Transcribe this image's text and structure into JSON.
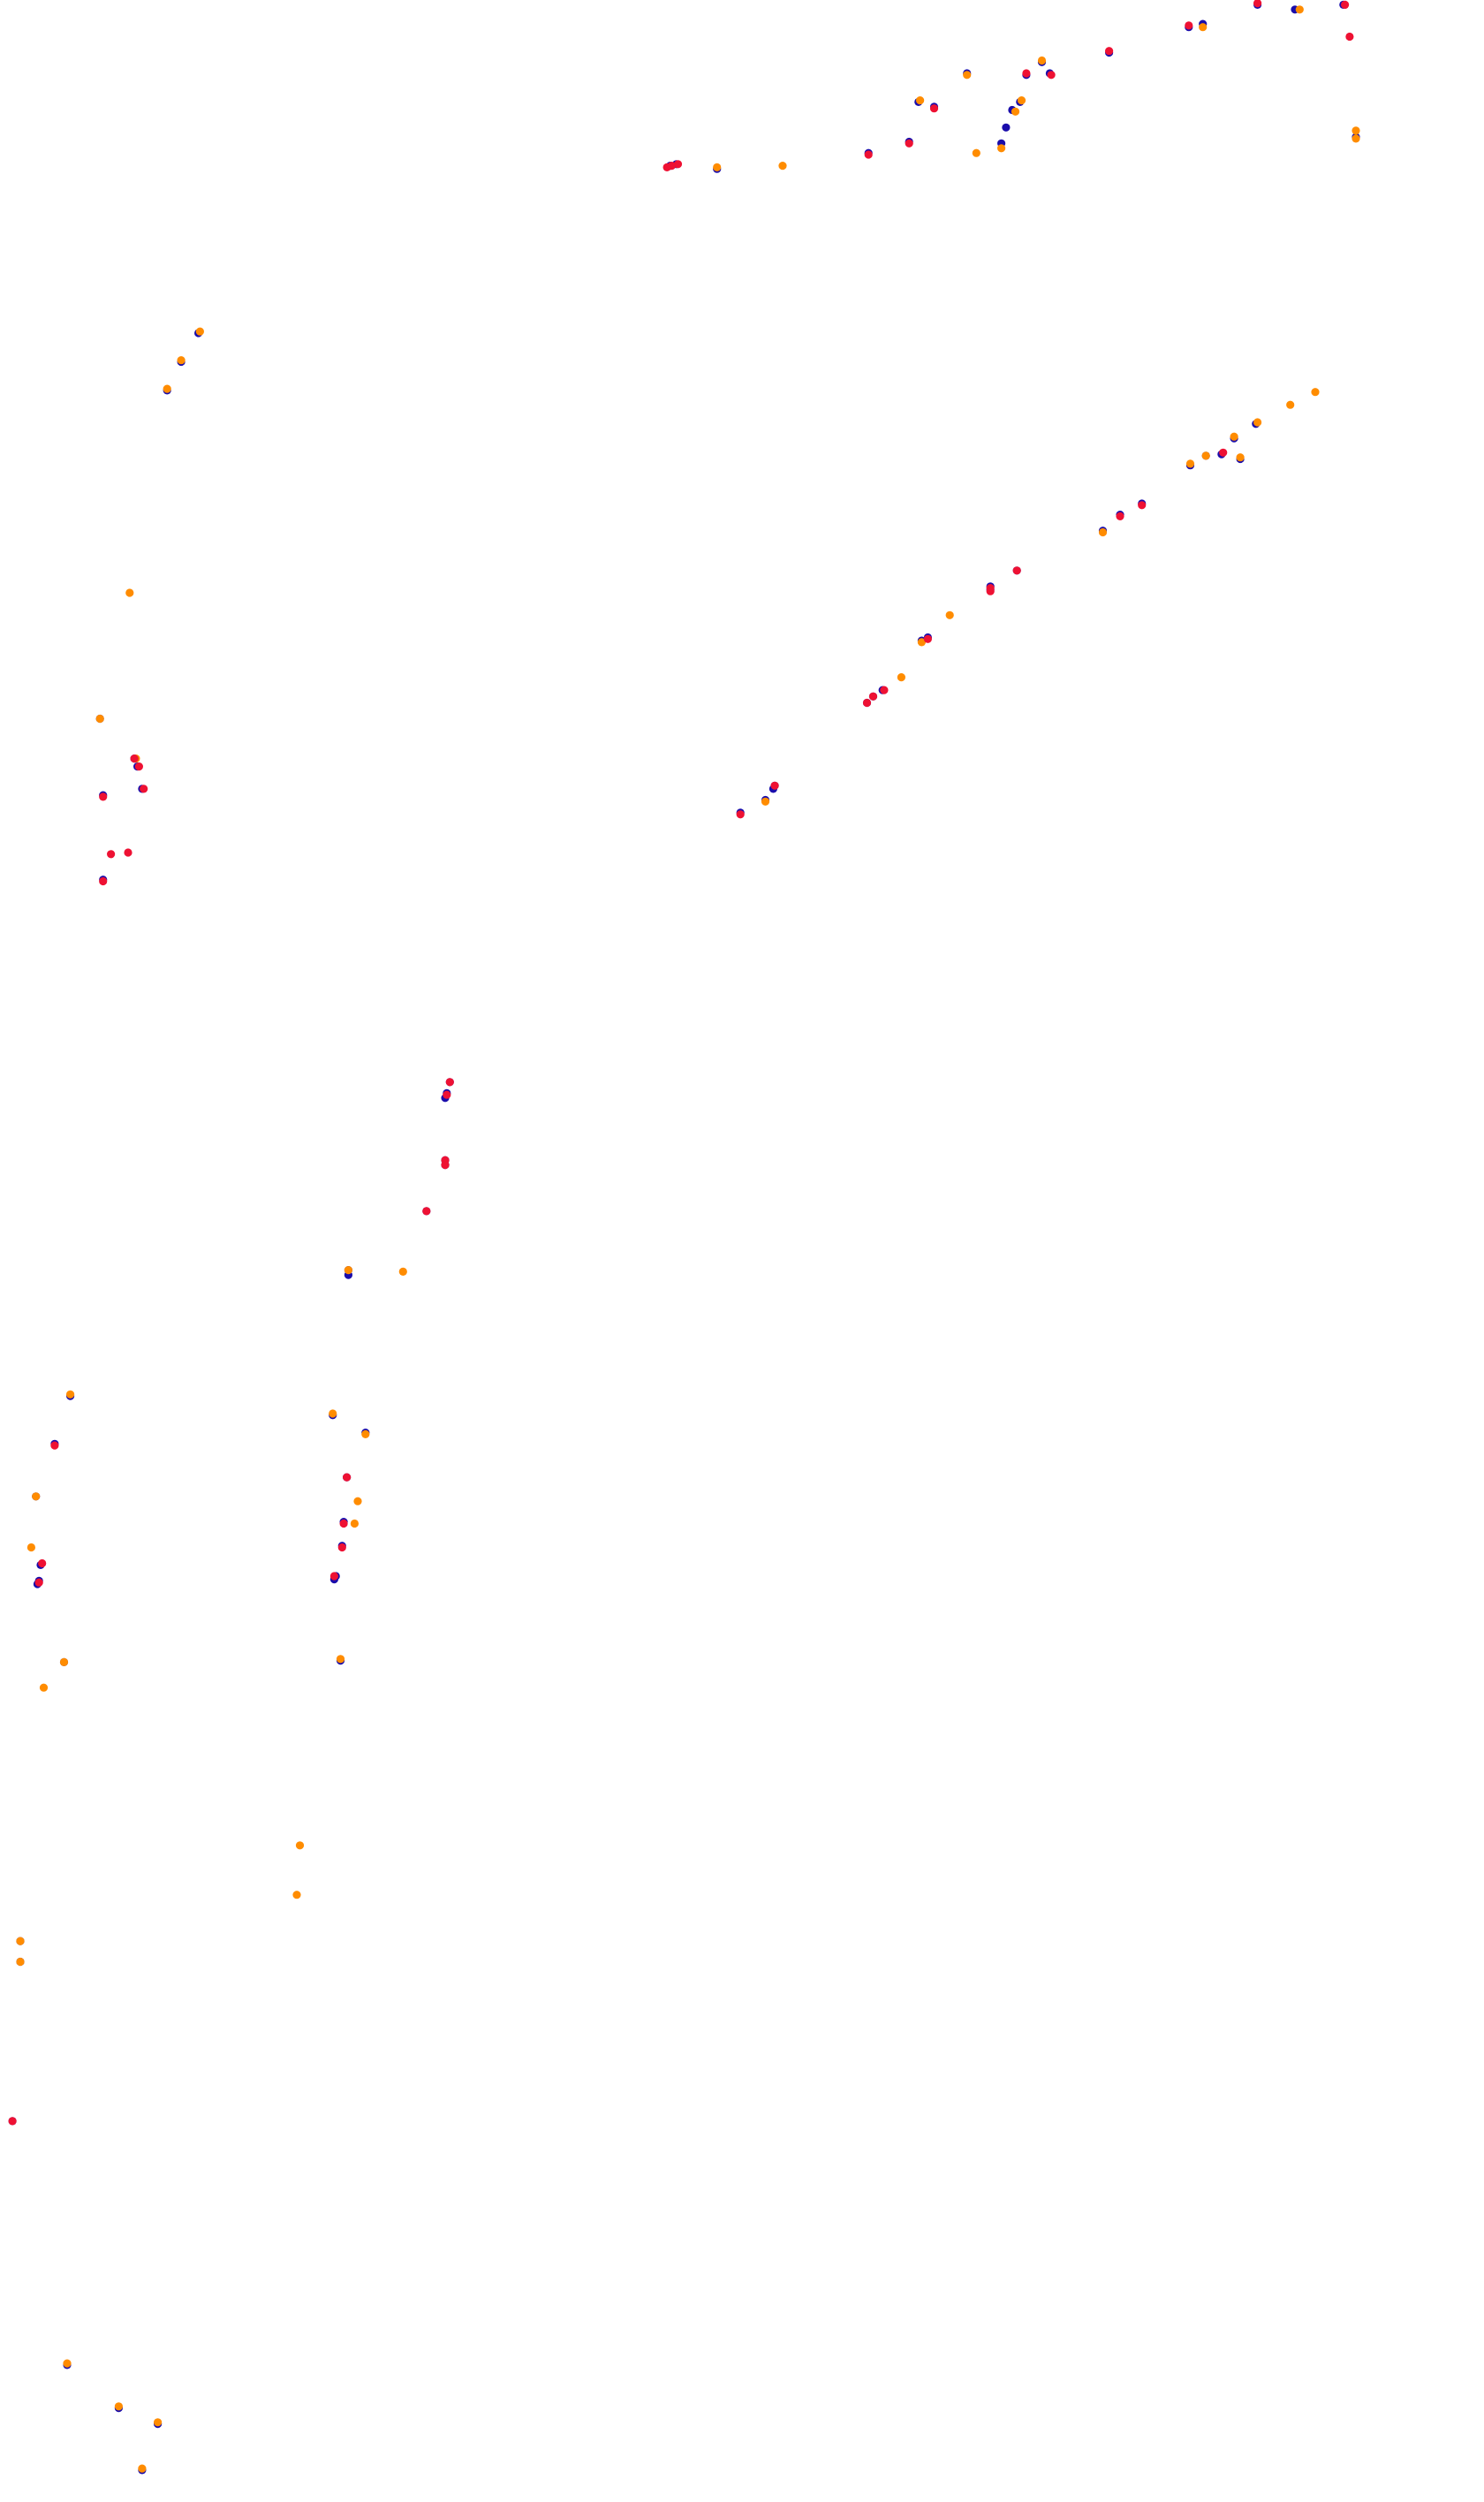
{
  "chart_data": {
    "type": "scatter",
    "title": "",
    "xlabel": "",
    "ylabel": "",
    "axes_visible": false,
    "grid": false,
    "legend": "none",
    "xlim": [
      0,
      950
    ],
    "ylim": [
      1570,
      0
    ],
    "series": [
      {
        "color": "#1a0dab",
        "points": [
          [
            805,
            3
          ],
          [
            829,
            6
          ],
          [
            860,
            3
          ],
          [
            770,
            15
          ],
          [
            761,
            17
          ],
          [
            710,
            33
          ],
          [
            672,
            46
          ],
          [
            657,
            47
          ],
          [
            619,
            46
          ],
          [
            667,
            39
          ],
          [
            653,
            64
          ],
          [
            648,
            69
          ],
          [
            644,
            80
          ],
          [
            641,
            90
          ],
          [
            598,
            67
          ],
          [
            588,
            64
          ],
          [
            582,
            89
          ],
          [
            556,
            96
          ],
          [
            433,
            103
          ],
          [
            429,
            104
          ],
          [
            459,
            106
          ],
          [
            868,
            86
          ],
          [
            127,
            209
          ],
          [
            116,
            227
          ],
          [
            107,
            245
          ],
          [
            804,
            266
          ],
          [
            790,
            275
          ],
          [
            794,
            288
          ],
          [
            782,
            285
          ],
          [
            772,
            286
          ],
          [
            762,
            292
          ],
          [
            731,
            316
          ],
          [
            717,
            323
          ],
          [
            706,
            333
          ],
          [
            651,
            358
          ],
          [
            634,
            368
          ],
          [
            634,
            370
          ],
          [
            594,
            400
          ],
          [
            590,
            402
          ],
          [
            565,
            433
          ],
          [
            559,
            437
          ],
          [
            555,
            441
          ],
          [
            496,
            493
          ],
          [
            495,
            495
          ],
          [
            490,
            502
          ],
          [
            474,
            510
          ],
          [
            64,
            451
          ],
          [
            86,
            476
          ],
          [
            88,
            481
          ],
          [
            91,
            495
          ],
          [
            66,
            499
          ],
          [
            66,
            552
          ],
          [
            288,
            679
          ],
          [
            286,
            686
          ],
          [
            285,
            689
          ],
          [
            285,
            728
          ],
          [
            285,
            731
          ],
          [
            273,
            760
          ],
          [
            223,
            797
          ],
          [
            223,
            800
          ],
          [
            45,
            876
          ],
          [
            35,
            906
          ],
          [
            23,
            939
          ],
          [
            26,
            982
          ],
          [
            25,
            992
          ],
          [
            24,
            994
          ],
          [
            41,
            1043
          ],
          [
            213,
            888
          ],
          [
            234,
            899
          ],
          [
            222,
            927
          ],
          [
            220,
            955
          ],
          [
            219,
            970
          ],
          [
            215,
            989
          ],
          [
            214,
            991
          ],
          [
            218,
            1042
          ],
          [
            13,
            1218
          ],
          [
            13,
            1231
          ],
          [
            8,
            1331
          ],
          [
            43,
            1484
          ],
          [
            76,
            1511
          ],
          [
            101,
            1521
          ],
          [
            91,
            1550
          ]
        ]
      },
      {
        "color": "#ff8c00",
        "points": [
          [
            832,
            6
          ],
          [
            770,
            17
          ],
          [
            667,
            38
          ],
          [
            654,
            63
          ],
          [
            650,
            70
          ],
          [
            641,
            93
          ],
          [
            625,
            96
          ],
          [
            619,
            47
          ],
          [
            589,
            63
          ],
          [
            501,
            104
          ],
          [
            459,
            105
          ],
          [
            868,
            82
          ],
          [
            868,
            87
          ],
          [
            128,
            208
          ],
          [
            116,
            226
          ],
          [
            107,
            244
          ],
          [
            842,
            246
          ],
          [
            826,
            254
          ],
          [
            805,
            265
          ],
          [
            790,
            274
          ],
          [
            794,
            287
          ],
          [
            772,
            286
          ],
          [
            762,
            291
          ],
          [
            706,
            334
          ],
          [
            608,
            386
          ],
          [
            590,
            403
          ],
          [
            577,
            425
          ],
          [
            490,
            503
          ],
          [
            83,
            372
          ],
          [
            64,
            451
          ],
          [
            87,
            476
          ],
          [
            258,
            798
          ],
          [
            223,
            797
          ],
          [
            45,
            875
          ],
          [
            23,
            939
          ],
          [
            20,
            971
          ],
          [
            41,
            1043
          ],
          [
            28,
            1059
          ],
          [
            213,
            887
          ],
          [
            234,
            900
          ],
          [
            229,
            942
          ],
          [
            227,
            956
          ],
          [
            218,
            1041
          ],
          [
            192,
            1158
          ],
          [
            190,
            1189
          ],
          [
            13,
            1218
          ],
          [
            13,
            1231
          ],
          [
            43,
            1483
          ],
          [
            76,
            1510
          ],
          [
            101,
            1520
          ],
          [
            91,
            1549
          ]
        ]
      },
      {
        "color": "#ee1133",
        "points": [
          [
            805,
            2
          ],
          [
            861,
            3
          ],
          [
            864,
            23
          ],
          [
            761,
            16
          ],
          [
            710,
            32
          ],
          [
            673,
            47
          ],
          [
            657,
            46
          ],
          [
            598,
            68
          ],
          [
            582,
            90
          ],
          [
            556,
            97
          ],
          [
            434,
            103
          ],
          [
            430,
            104
          ],
          [
            427,
            105
          ],
          [
            783,
            284
          ],
          [
            731,
            317
          ],
          [
            717,
            324
          ],
          [
            651,
            358
          ],
          [
            634,
            369
          ],
          [
            634,
            371
          ],
          [
            594,
            401
          ],
          [
            566,
            433
          ],
          [
            559,
            437
          ],
          [
            555,
            441
          ],
          [
            496,
            493
          ],
          [
            474,
            511
          ],
          [
            86,
            476
          ],
          [
            89,
            481
          ],
          [
            92,
            495
          ],
          [
            66,
            500
          ],
          [
            71,
            536
          ],
          [
            82,
            535
          ],
          [
            66,
            553
          ],
          [
            288,
            679
          ],
          [
            286,
            687
          ],
          [
            285,
            728
          ],
          [
            285,
            731
          ],
          [
            273,
            760
          ],
          [
            35,
            907
          ],
          [
            27,
            981
          ],
          [
            25,
            993
          ],
          [
            222,
            927
          ],
          [
            220,
            956
          ],
          [
            219,
            971
          ],
          [
            214,
            989
          ],
          [
            8,
            1331
          ]
        ]
      }
    ]
  }
}
